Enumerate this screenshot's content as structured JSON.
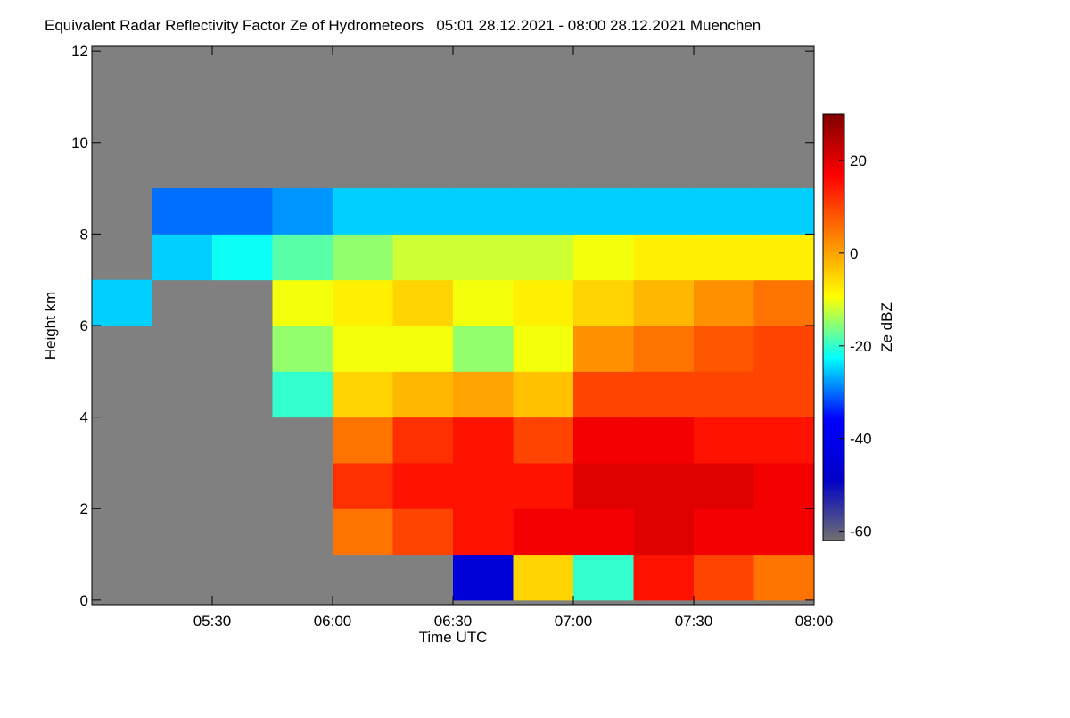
{
  "chart_data": {
    "type": "heatmap",
    "title": "Equivalent Radar Reflectivity Factor Ze of Hydrometeors   05:01 28.12.2021 - 08:00 28.12.2021 Muenchen",
    "x_label": "Time UTC",
    "y_label": "Height km",
    "colorbar_label": "Ze dBZ",
    "xlim": [
      5.0,
      8.0
    ],
    "xticks": [
      {
        "value": 5.5,
        "label": "05:30"
      },
      {
        "value": 6.0,
        "label": "06:00"
      },
      {
        "value": 6.5,
        "label": "06:30"
      },
      {
        "value": 7.0,
        "label": "07:00"
      },
      {
        "value": 7.5,
        "label": "07:30"
      },
      {
        "value": 8.0,
        "label": "08:00"
      }
    ],
    "ylim": [
      -0.1,
      12.1
    ],
    "yticks": [
      0,
      2,
      4,
      6,
      8,
      10,
      12
    ],
    "clim": [
      -62,
      30
    ],
    "cticks": [
      -60,
      -40,
      -20,
      0,
      20
    ],
    "colormap": [
      "#707070",
      "#0000c8",
      "#0000ff",
      "#00ffff",
      "#ffff00",
      "#ff8000",
      "#ff0000",
      "#800000"
    ],
    "background_color": "#808080",
    "x": [
      5.125,
      5.375,
      5.625,
      5.875,
      6.125,
      6.375,
      6.625,
      6.875,
      7.125,
      7.375,
      7.625,
      7.875
    ],
    "y": [
      0.5,
      1.5,
      2.5,
      3.5,
      4.5,
      5.5,
      6.5,
      7.5,
      8.5
    ],
    "z": [
      [
        null,
        null,
        null,
        null,
        null,
        null,
        -45,
        -5,
        -20,
        15,
        10,
        5
      ],
      [
        null,
        null,
        null,
        null,
        5,
        10,
        15,
        18,
        18,
        20,
        18,
        18
      ],
      [
        null,
        null,
        null,
        null,
        12,
        15,
        15,
        15,
        20,
        20,
        20,
        18
      ],
      [
        null,
        null,
        null,
        null,
        5,
        12,
        15,
        10,
        18,
        18,
        15,
        15
      ],
      [
        null,
        null,
        null,
        -20,
        -5,
        -2,
        0,
        -3,
        10,
        10,
        10,
        10
      ],
      [
        null,
        null,
        null,
        -15,
        -10,
        -10,
        -15,
        -10,
        2,
        5,
        8,
        10
      ],
      [
        -25,
        null,
        null,
        -10,
        -8,
        -5,
        -10,
        -8,
        -5,
        -2,
        2,
        5
      ],
      [
        null,
        -25,
        -22,
        -18,
        -15,
        -12,
        -12,
        -12,
        -10,
        -8,
        -8,
        -8
      ],
      [
        null,
        -30,
        -30,
        -28,
        -25,
        -25,
        -25,
        -25,
        -25,
        -25,
        -25,
        -25
      ]
    ]
  }
}
